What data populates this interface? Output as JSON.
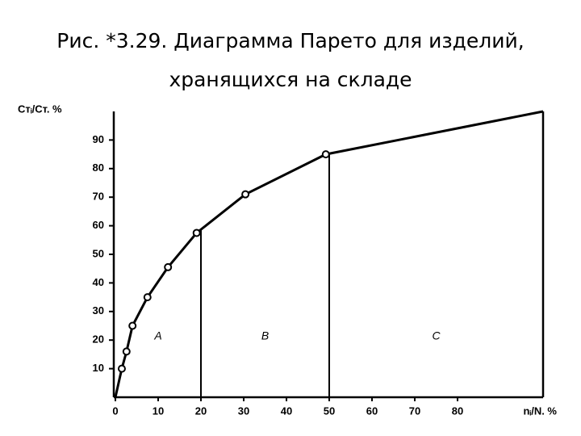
{
  "chart_data": {
    "type": "line",
    "title": "Рис. *3.29. Диаграмма Парето для изделий,",
    "subtitle": "хранящихся на складе",
    "y_label": "Стᵢ/Ст. %",
    "x_label": "nᵢ/N. %",
    "x": [
      0,
      1.5,
      2.6,
      4,
      7.5,
      12.3,
      19,
      30.4,
      49.2,
      100
    ],
    "series": [
      {
        "color": "#000000",
        "values": [
          0,
          10,
          16,
          25,
          35,
          45.5,
          57.5,
          71,
          85,
          100
        ]
      }
    ],
    "xlim": [
      0,
      100
    ],
    "ylim": [
      0,
      100
    ],
    "xticks": [
      0,
      10,
      20,
      30,
      40,
      50,
      60,
      70,
      80
    ],
    "yticks": [
      10,
      20,
      30,
      40,
      50,
      60,
      70,
      80,
      90
    ],
    "dividers": [
      20,
      50
    ],
    "annotations": [
      "A",
      "B",
      "C"
    ]
  }
}
